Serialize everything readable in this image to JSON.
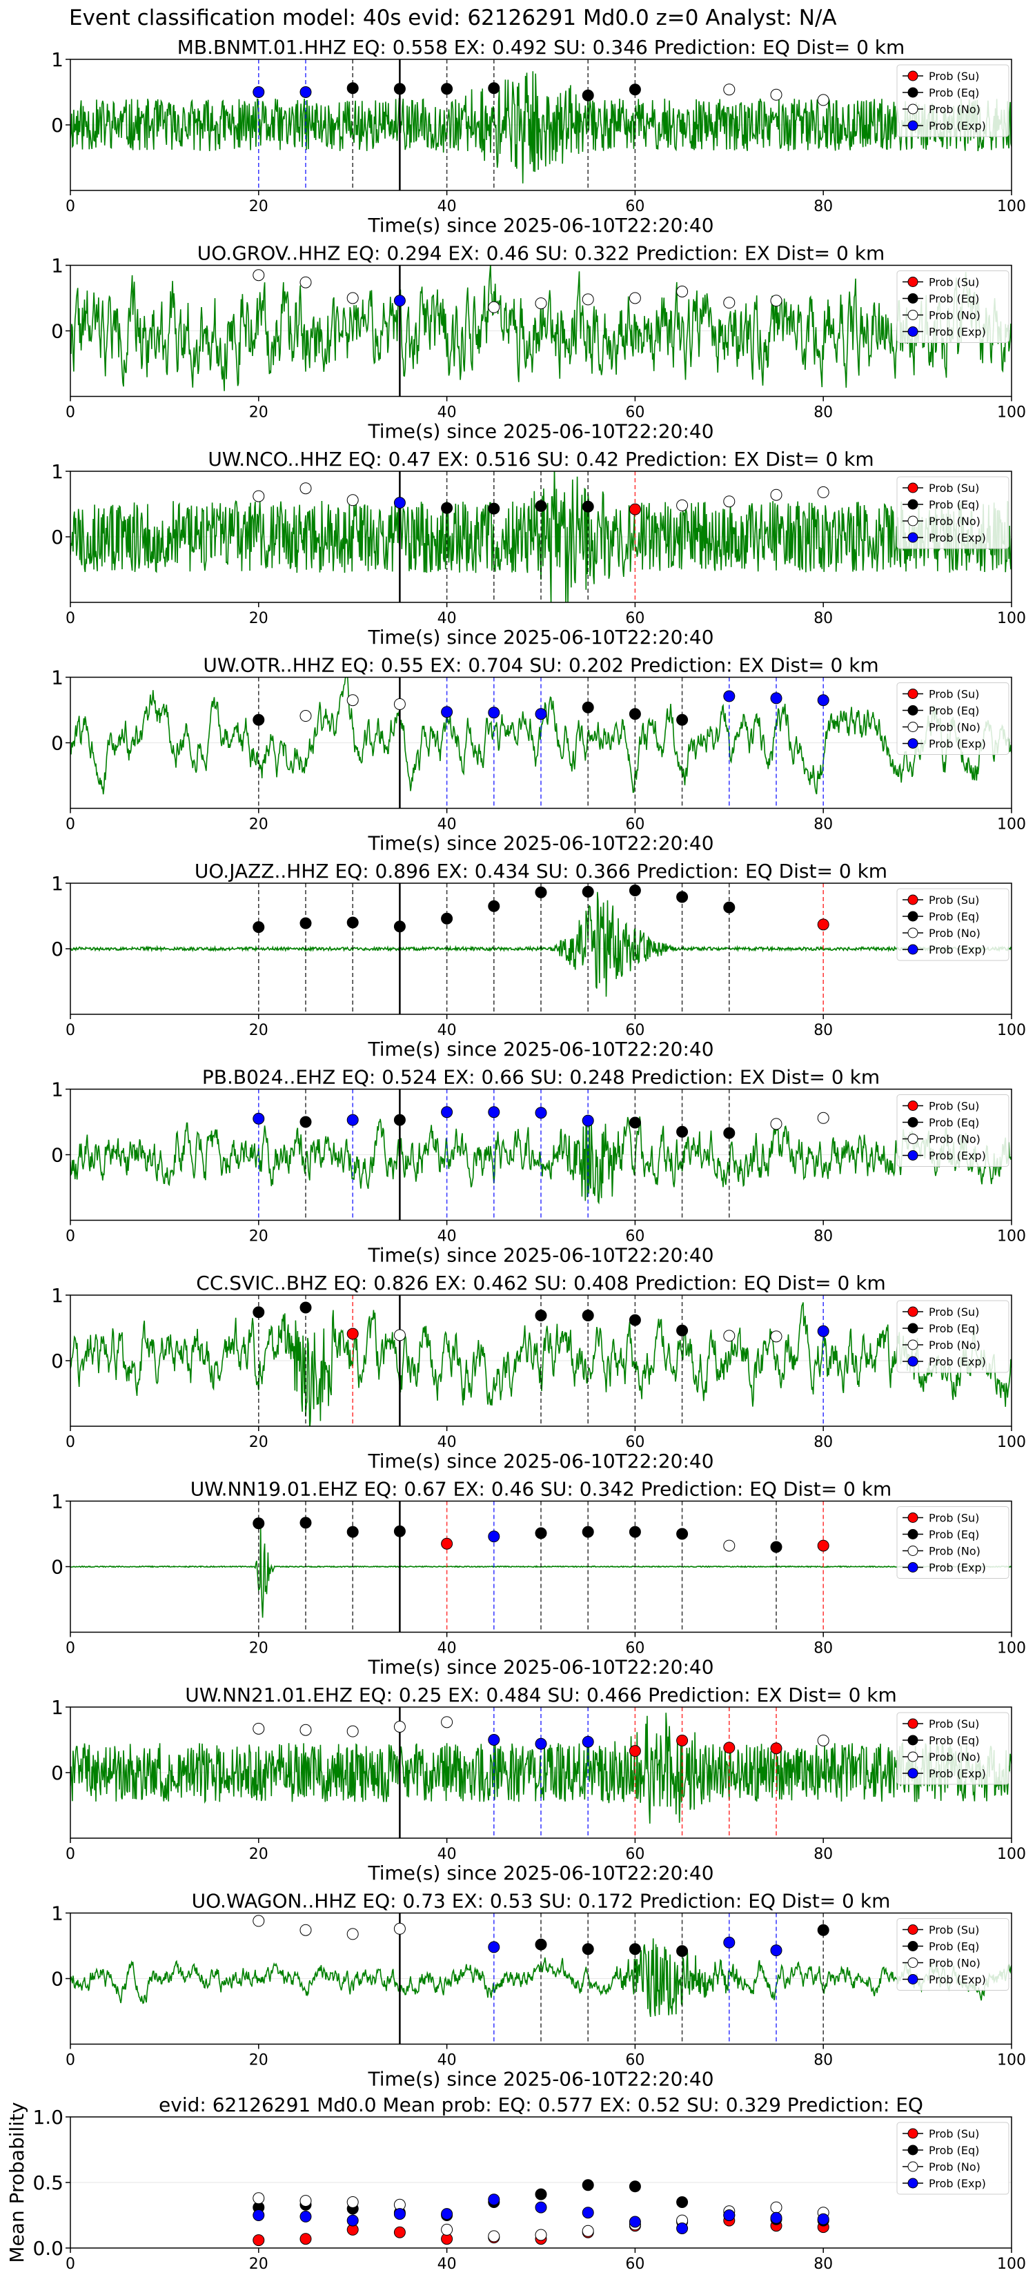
{
  "figure_title": "Event classification model: 40s evid: 62126291 Md0.0 z=0 Analyst: N/A",
  "x_label": "Time(s) since 2025-06-10T22:20:40",
  "legend": [
    {
      "label": "Prob (Su)",
      "color": "#ff0000"
    },
    {
      "label": "Prob (Eq)",
      "color": "#000000"
    },
    {
      "label": "Prob (No)",
      "color": "#ffffff"
    },
    {
      "label": "Prob (Exp)",
      "color": "#0000ff"
    }
  ],
  "colors": {
    "waveform": "#008000",
    "su": "#ff0000",
    "eq": "#000000",
    "no": "#ffffff",
    "exp": "#0000ff"
  },
  "chart_data": [
    {
      "type": "scatter",
      "title": "MB.BNMT.01.HHZ   EQ: 0.558  EX: 0.492  SU: 0.346   Prediction: EQ    Dist= 0 km",
      "xlim": [
        0,
        100
      ],
      "ylim": [
        -1,
        1
      ],
      "xticks": [
        0,
        20,
        40,
        60,
        80,
        100
      ],
      "yticks": [
        0,
        1
      ],
      "origin_time": 35,
      "trace_amp": 0.4,
      "trace_smooth": 1,
      "seed": 11,
      "burst": {
        "start": 37,
        "peak": 48,
        "end": 58,
        "amp": 0.9
      },
      "points": [
        {
          "x": 20,
          "y": 0.5,
          "cls": "exp"
        },
        {
          "x": 25,
          "y": 0.5,
          "cls": "exp"
        },
        {
          "x": 30,
          "y": 0.56,
          "cls": "eq"
        },
        {
          "x": 35,
          "y": 0.55,
          "cls": "eq"
        },
        {
          "x": 40,
          "y": 0.55,
          "cls": "eq"
        },
        {
          "x": 45,
          "y": 0.56,
          "cls": "eq"
        },
        {
          "x": 55,
          "y": 0.45,
          "cls": "eq"
        },
        {
          "x": 60,
          "y": 0.54,
          "cls": "eq"
        },
        {
          "x": 70,
          "y": 0.54,
          "cls": "no"
        },
        {
          "x": 75,
          "y": 0.46,
          "cls": "no"
        },
        {
          "x": 80,
          "y": 0.38,
          "cls": "no"
        }
      ]
    },
    {
      "type": "scatter",
      "title": "UO.GROV..HHZ   EQ: 0.294  EX: 0.46  SU: 0.322   Prediction: EX    Dist= 0 km",
      "xlim": [
        0,
        100
      ],
      "ylim": [
        -1,
        1
      ],
      "xticks": [
        0,
        20,
        40,
        60,
        80,
        100
      ],
      "yticks": [
        0,
        1
      ],
      "origin_time": 35,
      "trace_amp": 0.85,
      "trace_smooth": 3,
      "seed": 22,
      "burst": null,
      "points": [
        {
          "x": 20,
          "y": 0.85,
          "cls": "no"
        },
        {
          "x": 25,
          "y": 0.74,
          "cls": "no"
        },
        {
          "x": 30,
          "y": 0.5,
          "cls": "no"
        },
        {
          "x": 35,
          "y": 0.46,
          "cls": "exp"
        },
        {
          "x": 45,
          "y": 0.36,
          "cls": "no"
        },
        {
          "x": 50,
          "y": 0.42,
          "cls": "no"
        },
        {
          "x": 55,
          "y": 0.48,
          "cls": "no"
        },
        {
          "x": 60,
          "y": 0.5,
          "cls": "no"
        },
        {
          "x": 65,
          "y": 0.6,
          "cls": "no"
        },
        {
          "x": 70,
          "y": 0.43,
          "cls": "no"
        },
        {
          "x": 75,
          "y": 0.46,
          "cls": "no"
        }
      ]
    },
    {
      "type": "scatter",
      "title": "UW.NCO..HHZ   EQ: 0.47  EX: 0.516  SU: 0.42   Prediction: EX    Dist= 0 km",
      "xlim": [
        0,
        100
      ],
      "ylim": [
        -1,
        1
      ],
      "xticks": [
        0,
        20,
        40,
        60,
        80,
        100
      ],
      "yticks": [
        0,
        1
      ],
      "origin_time": 35,
      "trace_amp": 0.55,
      "trace_smooth": 1,
      "seed": 33,
      "burst": {
        "start": 44,
        "peak": 52,
        "end": 62,
        "amp": 0.95
      },
      "points": [
        {
          "x": 20,
          "y": 0.62,
          "cls": "no"
        },
        {
          "x": 25,
          "y": 0.74,
          "cls": "no"
        },
        {
          "x": 30,
          "y": 0.56,
          "cls": "no"
        },
        {
          "x": 35,
          "y": 0.52,
          "cls": "exp"
        },
        {
          "x": 40,
          "y": 0.44,
          "cls": "eq"
        },
        {
          "x": 45,
          "y": 0.43,
          "cls": "eq"
        },
        {
          "x": 50,
          "y": 0.47,
          "cls": "eq"
        },
        {
          "x": 55,
          "y": 0.46,
          "cls": "eq"
        },
        {
          "x": 60,
          "y": 0.42,
          "cls": "su"
        },
        {
          "x": 65,
          "y": 0.48,
          "cls": "no"
        },
        {
          "x": 70,
          "y": 0.54,
          "cls": "no"
        },
        {
          "x": 75,
          "y": 0.64,
          "cls": "no"
        },
        {
          "x": 80,
          "y": 0.68,
          "cls": "no"
        }
      ]
    },
    {
      "type": "scatter",
      "title": "UW.OTR..HHZ   EQ: 0.55  EX: 0.704  SU: 0.202   Prediction: EX    Dist= 0 km",
      "xlim": [
        0,
        100
      ],
      "ylim": [
        -1,
        1
      ],
      "xticks": [
        0,
        20,
        40,
        60,
        80,
        100
      ],
      "yticks": [
        0,
        1
      ],
      "origin_time": 35,
      "trace_amp": 0.8,
      "trace_smooth": 14,
      "seed": 44,
      "burst": null,
      "points": [
        {
          "x": 20,
          "y": 0.35,
          "cls": "eq"
        },
        {
          "x": 25,
          "y": 0.41,
          "cls": "no"
        },
        {
          "x": 30,
          "y": 0.65,
          "cls": "no"
        },
        {
          "x": 35,
          "y": 0.59,
          "cls": "no"
        },
        {
          "x": 40,
          "y": 0.47,
          "cls": "exp"
        },
        {
          "x": 45,
          "y": 0.46,
          "cls": "exp"
        },
        {
          "x": 50,
          "y": 0.44,
          "cls": "exp"
        },
        {
          "x": 55,
          "y": 0.54,
          "cls": "eq"
        },
        {
          "x": 60,
          "y": 0.44,
          "cls": "eq"
        },
        {
          "x": 65,
          "y": 0.35,
          "cls": "eq"
        },
        {
          "x": 70,
          "y": 0.71,
          "cls": "exp"
        },
        {
          "x": 75,
          "y": 0.68,
          "cls": "exp"
        },
        {
          "x": 80,
          "y": 0.65,
          "cls": "exp"
        }
      ]
    },
    {
      "type": "scatter",
      "title": "UO.JAZZ..HHZ   EQ: 0.896  EX: 0.434  SU: 0.366   Prediction: EQ    Dist= 0 km",
      "xlim": [
        0,
        100
      ],
      "ylim": [
        -1,
        1
      ],
      "xticks": [
        0,
        20,
        40,
        60,
        80,
        100
      ],
      "yticks": [
        0,
        1
      ],
      "origin_time": 35,
      "trace_amp": 0.025,
      "trace_smooth": 1,
      "seed": 55,
      "burst": {
        "start": 50,
        "peak": 56,
        "end": 66,
        "amp": 0.95
      },
      "points": [
        {
          "x": 20,
          "y": 0.33,
          "cls": "eq"
        },
        {
          "x": 25,
          "y": 0.39,
          "cls": "eq"
        },
        {
          "x": 30,
          "y": 0.4,
          "cls": "eq"
        },
        {
          "x": 35,
          "y": 0.34,
          "cls": "eq"
        },
        {
          "x": 40,
          "y": 0.46,
          "cls": "eq"
        },
        {
          "x": 45,
          "y": 0.65,
          "cls": "eq"
        },
        {
          "x": 50,
          "y": 0.86,
          "cls": "eq"
        },
        {
          "x": 55,
          "y": 0.87,
          "cls": "eq"
        },
        {
          "x": 60,
          "y": 0.89,
          "cls": "eq"
        },
        {
          "x": 65,
          "y": 0.79,
          "cls": "eq"
        },
        {
          "x": 70,
          "y": 0.63,
          "cls": "eq"
        },
        {
          "x": 80,
          "y": 0.37,
          "cls": "su"
        }
      ]
    },
    {
      "type": "scatter",
      "title": "PB.B024..EHZ   EQ: 0.524  EX: 0.66  SU: 0.248   Prediction: EX    Dist= 0 km",
      "xlim": [
        0,
        100
      ],
      "ylim": [
        -1,
        1
      ],
      "xticks": [
        0,
        20,
        40,
        60,
        80,
        100
      ],
      "yticks": [
        0,
        1
      ],
      "origin_time": 35,
      "trace_amp": 0.5,
      "trace_smooth": 4,
      "seed": 66,
      "burst": {
        "start": 50,
        "peak": 55,
        "end": 62,
        "amp": 0.8
      },
      "points": [
        {
          "x": 20,
          "y": 0.55,
          "cls": "exp"
        },
        {
          "x": 25,
          "y": 0.5,
          "cls": "eq"
        },
        {
          "x": 30,
          "y": 0.53,
          "cls": "exp"
        },
        {
          "x": 35,
          "y": 0.53,
          "cls": "eq"
        },
        {
          "x": 40,
          "y": 0.65,
          "cls": "exp"
        },
        {
          "x": 45,
          "y": 0.65,
          "cls": "exp"
        },
        {
          "x": 50,
          "y": 0.64,
          "cls": "exp"
        },
        {
          "x": 55,
          "y": 0.52,
          "cls": "exp"
        },
        {
          "x": 60,
          "y": 0.49,
          "cls": "eq"
        },
        {
          "x": 65,
          "y": 0.35,
          "cls": "eq"
        },
        {
          "x": 70,
          "y": 0.33,
          "cls": "eq"
        },
        {
          "x": 75,
          "y": 0.47,
          "cls": "no"
        },
        {
          "x": 80,
          "y": 0.56,
          "cls": "no"
        }
      ]
    },
    {
      "type": "scatter",
      "title": "CC.SVIC..BHZ   EQ: 0.826  EX: 0.462  SU: 0.408   Prediction: EQ    Dist= 0 km",
      "xlim": [
        0,
        100
      ],
      "ylim": [
        -1,
        1
      ],
      "xticks": [
        0,
        20,
        40,
        60,
        80,
        100
      ],
      "yticks": [
        0,
        1
      ],
      "origin_time": 35,
      "trace_amp": 0.7,
      "trace_smooth": 6,
      "seed": 77,
      "burst": {
        "start": 20,
        "peak": 25,
        "end": 32,
        "amp": 0.95
      },
      "points": [
        {
          "x": 20,
          "y": 0.74,
          "cls": "eq"
        },
        {
          "x": 25,
          "y": 0.81,
          "cls": "eq"
        },
        {
          "x": 30,
          "y": 0.41,
          "cls": "su"
        },
        {
          "x": 35,
          "y": 0.39,
          "cls": "no"
        },
        {
          "x": 50,
          "y": 0.69,
          "cls": "eq"
        },
        {
          "x": 55,
          "y": 0.69,
          "cls": "eq"
        },
        {
          "x": 60,
          "y": 0.62,
          "cls": "eq"
        },
        {
          "x": 65,
          "y": 0.46,
          "cls": "eq"
        },
        {
          "x": 70,
          "y": 0.38,
          "cls": "no"
        },
        {
          "x": 75,
          "y": 0.37,
          "cls": "no"
        },
        {
          "x": 80,
          "y": 0.45,
          "cls": "exp"
        }
      ]
    },
    {
      "type": "scatter",
      "title": "UW.NN19.01.EHZ   EQ: 0.67  EX: 0.46  SU: 0.342   Prediction: EQ    Dist= 0 km",
      "xlim": [
        0,
        100
      ],
      "ylim": [
        -1,
        1
      ],
      "xticks": [
        0,
        20,
        40,
        60,
        80,
        100
      ],
      "yticks": [
        0,
        1
      ],
      "origin_time": 35,
      "trace_amp": 0.008,
      "trace_smooth": 1,
      "seed": 88,
      "burst": {
        "start": 19.5,
        "peak": 20.3,
        "end": 22,
        "amp": 0.95
      },
      "points": [
        {
          "x": 20,
          "y": 0.66,
          "cls": "eq"
        },
        {
          "x": 25,
          "y": 0.67,
          "cls": "eq"
        },
        {
          "x": 30,
          "y": 0.53,
          "cls": "eq"
        },
        {
          "x": 35,
          "y": 0.54,
          "cls": "eq"
        },
        {
          "x": 40,
          "y": 0.35,
          "cls": "su"
        },
        {
          "x": 45,
          "y": 0.46,
          "cls": "exp"
        },
        {
          "x": 50,
          "y": 0.51,
          "cls": "eq"
        },
        {
          "x": 55,
          "y": 0.53,
          "cls": "eq"
        },
        {
          "x": 60,
          "y": 0.53,
          "cls": "eq"
        },
        {
          "x": 65,
          "y": 0.5,
          "cls": "eq"
        },
        {
          "x": 70,
          "y": 0.32,
          "cls": "no"
        },
        {
          "x": 75,
          "y": 0.3,
          "cls": "eq"
        },
        {
          "x": 80,
          "y": 0.32,
          "cls": "su"
        }
      ]
    },
    {
      "type": "scatter",
      "title": "UW.NN21.01.EHZ   EQ: 0.25  EX: 0.484  SU: 0.466   Prediction: EX    Dist= 0 km",
      "xlim": [
        0,
        100
      ],
      "ylim": [
        -1,
        1
      ],
      "xticks": [
        0,
        20,
        40,
        60,
        80,
        100
      ],
      "yticks": [
        0,
        1
      ],
      "origin_time": 35,
      "trace_amp": 0.45,
      "trace_smooth": 1,
      "seed": 99,
      "burst": {
        "start": 56,
        "peak": 62,
        "end": 72,
        "amp": 0.8
      },
      "points": [
        {
          "x": 20,
          "y": 0.67,
          "cls": "no"
        },
        {
          "x": 25,
          "y": 0.65,
          "cls": "no"
        },
        {
          "x": 30,
          "y": 0.63,
          "cls": "no"
        },
        {
          "x": 35,
          "y": 0.7,
          "cls": "no"
        },
        {
          "x": 40,
          "y": 0.77,
          "cls": "no"
        },
        {
          "x": 45,
          "y": 0.5,
          "cls": "exp"
        },
        {
          "x": 50,
          "y": 0.44,
          "cls": "exp"
        },
        {
          "x": 55,
          "y": 0.47,
          "cls": "exp"
        },
        {
          "x": 60,
          "y": 0.33,
          "cls": "su"
        },
        {
          "x": 65,
          "y": 0.49,
          "cls": "su"
        },
        {
          "x": 70,
          "y": 0.38,
          "cls": "su"
        },
        {
          "x": 75,
          "y": 0.37,
          "cls": "su"
        },
        {
          "x": 80,
          "y": 0.49,
          "cls": "no"
        }
      ]
    },
    {
      "type": "scatter",
      "title": "UO.WAGON..HHZ   EQ: 0.73  EX: 0.53  SU: 0.172   Prediction: EQ    Dist= 0 km",
      "xlim": [
        0,
        100
      ],
      "ylim": [
        -1,
        1
      ],
      "xticks": [
        0,
        20,
        40,
        60,
        80,
        100
      ],
      "yticks": [
        0,
        1
      ],
      "origin_time": 35,
      "trace_amp": 0.3,
      "trace_smooth": 6,
      "seed": 111,
      "burst": {
        "start": 56,
        "peak": 62,
        "end": 76,
        "amp": 0.7
      },
      "points": [
        {
          "x": 20,
          "y": 0.88,
          "cls": "no"
        },
        {
          "x": 25,
          "y": 0.74,
          "cls": "no"
        },
        {
          "x": 30,
          "y": 0.68,
          "cls": "no"
        },
        {
          "x": 35,
          "y": 0.76,
          "cls": "no"
        },
        {
          "x": 45,
          "y": 0.48,
          "cls": "exp"
        },
        {
          "x": 50,
          "y": 0.52,
          "cls": "eq"
        },
        {
          "x": 55,
          "y": 0.45,
          "cls": "eq"
        },
        {
          "x": 60,
          "y": 0.45,
          "cls": "eq"
        },
        {
          "x": 65,
          "y": 0.42,
          "cls": "eq"
        },
        {
          "x": 70,
          "y": 0.55,
          "cls": "exp"
        },
        {
          "x": 75,
          "y": 0.43,
          "cls": "exp"
        },
        {
          "x": 80,
          "y": 0.74,
          "cls": "eq"
        }
      ]
    },
    {
      "type": "scatter",
      "title": "evid: 62126291  Md0.0   Mean prob:   EQ: 0.577  EX: 0.52  SU: 0.329   Prediction: EQ",
      "ylabel": "Mean Probability",
      "xlim": [
        0,
        100
      ],
      "ylim": [
        0,
        1
      ],
      "xticks": [
        0,
        20,
        40,
        60,
        80,
        100
      ],
      "yticks": [
        0.0,
        0.5,
        1.0
      ],
      "series": [
        {
          "name": "Prob (Su)",
          "cls": "su",
          "x": [
            20,
            25,
            30,
            35,
            40,
            45,
            50,
            55,
            60,
            65,
            70,
            75,
            80
          ],
          "y": [
            0.06,
            0.07,
            0.14,
            0.12,
            0.07,
            0.08,
            0.07,
            0.12,
            0.17,
            0.2,
            0.21,
            0.17,
            0.16
          ]
        },
        {
          "name": "Prob (Eq)",
          "cls": "eq",
          "x": [
            20,
            25,
            30,
            35,
            40,
            45,
            50,
            55,
            60,
            65,
            70,
            75,
            80
          ],
          "y": [
            0.31,
            0.33,
            0.3,
            0.27,
            0.25,
            0.35,
            0.41,
            0.48,
            0.47,
            0.35,
            0.25,
            0.22,
            0.21
          ]
        },
        {
          "name": "Prob (No)",
          "cls": "no",
          "x": [
            20,
            25,
            30,
            35,
            40,
            45,
            50,
            55,
            60,
            65,
            70,
            75,
            80
          ],
          "y": [
            0.38,
            0.36,
            0.35,
            0.33,
            0.14,
            0.09,
            0.1,
            0.13,
            0.18,
            0.21,
            0.28,
            0.31,
            0.27
          ]
        },
        {
          "name": "Prob (Exp)",
          "cls": "exp",
          "x": [
            20,
            25,
            30,
            35,
            40,
            45,
            50,
            55,
            60,
            65,
            70,
            75,
            80
          ],
          "y": [
            0.25,
            0.24,
            0.21,
            0.26,
            0.26,
            0.37,
            0.31,
            0.27,
            0.2,
            0.15,
            0.25,
            0.23,
            0.22
          ]
        }
      ]
    }
  ]
}
